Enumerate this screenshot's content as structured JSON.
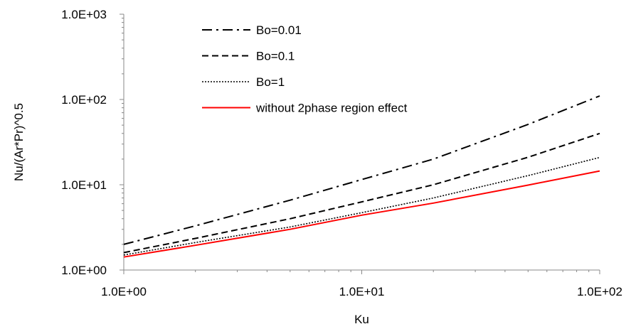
{
  "chart_data": {
    "type": "line",
    "title": "",
    "xlabel": "Ku",
    "ylabel": "Nu/(Ar*Pr)^0.5",
    "xscale": "log",
    "yscale": "log",
    "xlim": [
      1,
      100
    ],
    "ylim": [
      1,
      1000
    ],
    "x_tick_labels": [
      "1.0E+00",
      "1.0E+01",
      "1.0E+02"
    ],
    "y_tick_labels": [
      "1.0E+00",
      "1.0E+01",
      "1.0E+02",
      "1.0E+03"
    ],
    "grid": false,
    "legend_position": "top-center",
    "x": [
      1,
      2,
      5,
      10,
      20,
      50,
      100
    ],
    "series": [
      {
        "name": "Bo=0.01",
        "style": "dash-dot",
        "color": "#000000",
        "values": [
          2.0,
          3.3,
          6.6,
          11.5,
          20.0,
          51.0,
          110.0
        ]
      },
      {
        "name": "Bo=0.1",
        "style": "dashed",
        "color": "#000000",
        "values": [
          1.6,
          2.35,
          4.0,
          6.3,
          10.0,
          21.0,
          40.0
        ]
      },
      {
        "name": "Bo=1",
        "style": "dotted",
        "color": "#000000",
        "values": [
          1.5,
          2.1,
          3.2,
          4.7,
          7.0,
          12.8,
          20.9
        ]
      },
      {
        "name": "without 2phase region effect",
        "style": "solid",
        "color": "#ff0000",
        "values": [
          1.42,
          1.95,
          3.0,
          4.4,
          6.1,
          9.9,
          14.5
        ]
      }
    ]
  }
}
